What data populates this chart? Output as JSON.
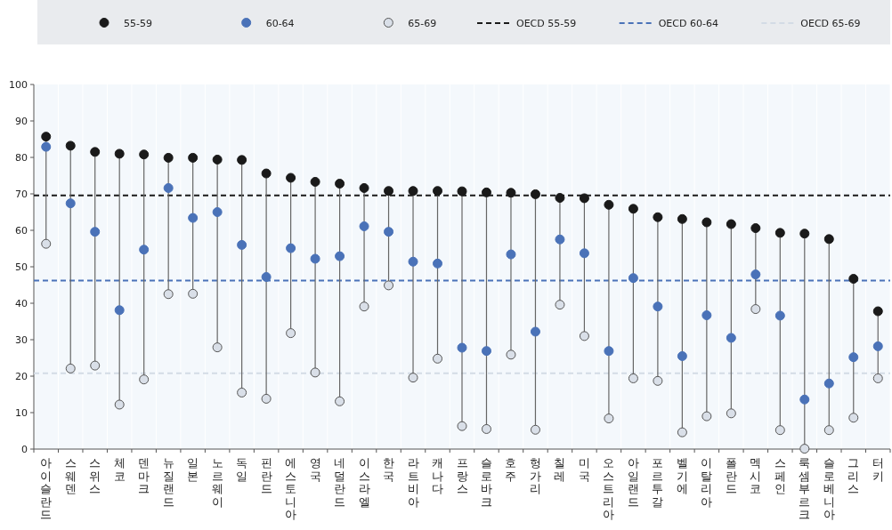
{
  "chart_data": {
    "type": "scatter",
    "categories": [
      "아이슬란드",
      "스웨덴",
      "스위스",
      "체코",
      "덴마크",
      "뉴질랜드",
      "일본",
      "노르웨이",
      "독일",
      "핀란드",
      "에스토니아",
      "영국",
      "네덜란드",
      "이스라엘",
      "한국",
      "라트비아",
      "캐나다",
      "프랑스",
      "슬로바크",
      "호주",
      "헝가리",
      "칠레",
      "미국",
      "오스트리아",
      "아일랜드",
      "포르투갈",
      "벨기에",
      "이탈리아",
      "폴란드",
      "멕시코",
      "스페인",
      "룩셈부르크",
      "슬로베니아",
      "그리스",
      "터키"
    ],
    "series": [
      {
        "name": "55-59",
        "color": "#1a1a1a",
        "values": [
          85.7,
          83.2,
          81.5,
          81.0,
          80.8,
          79.9,
          79.9,
          79.4,
          79.3,
          75.6,
          74.4,
          73.3,
          72.8,
          71.6,
          70.8,
          70.8,
          70.8,
          70.7,
          70.4,
          70.3,
          69.9,
          68.9,
          68.8,
          67.0,
          65.9,
          63.6,
          63.1,
          62.2,
          61.7,
          60.6,
          59.3,
          59.1,
          57.6,
          46.7,
          37.8
        ]
      },
      {
        "name": "60-64",
        "color": "#4a72b8",
        "values": [
          82.9,
          67.4,
          59.6,
          38.1,
          54.7,
          71.6,
          63.4,
          65.0,
          56.0,
          47.2,
          55.1,
          52.2,
          52.9,
          61.1,
          59.6,
          51.4,
          50.9,
          27.8,
          26.9,
          53.4,
          32.2,
          57.5,
          53.7,
          26.9,
          46.9,
          39.1,
          25.5,
          36.7,
          30.5,
          47.9,
          36.6,
          13.6,
          18.0,
          25.2,
          28.2
        ]
      },
      {
        "name": "65-69",
        "color": "#d9dfe8",
        "values": [
          56.3,
          22.1,
          22.9,
          12.2,
          19.1,
          42.5,
          42.6,
          27.9,
          15.5,
          13.8,
          31.8,
          21.0,
          13.1,
          39.1,
          44.9,
          19.6,
          24.8,
          6.3,
          5.5,
          25.9,
          5.3,
          39.6,
          31.0,
          8.4,
          19.4,
          18.7,
          4.6,
          9.0,
          9.8,
          38.4,
          5.2,
          0.1,
          5.2,
          8.6,
          19.4
        ]
      }
    ],
    "ref_lines": [
      {
        "axis": "y",
        "value": 69.6,
        "label": "OECD 55-59",
        "color": "#1a1a1a",
        "line_style": "dashed"
      },
      {
        "axis": "y",
        "value": 46.2,
        "label": "OECD 60-64",
        "color": "#4a72b8",
        "line_style": "dashed"
      },
      {
        "axis": "y",
        "value": 20.8,
        "label": "OECD 65-69",
        "color": "#d3dbe5",
        "line_style": "dashed"
      }
    ],
    "ylim": [
      0,
      100
    ],
    "yticks": [
      0,
      10,
      20,
      30,
      40,
      50,
      60,
      70,
      80,
      90,
      100
    ],
    "grid": "x",
    "legend": "top",
    "marker": "circle"
  }
}
